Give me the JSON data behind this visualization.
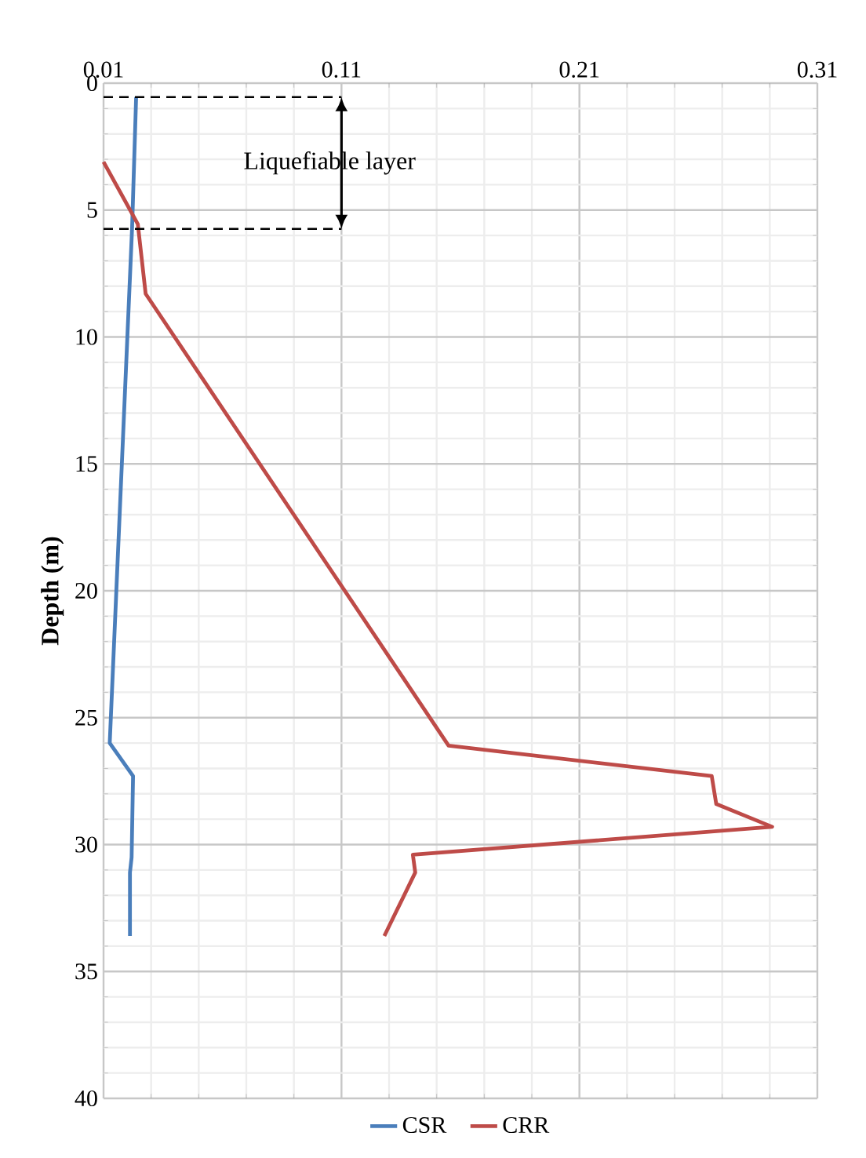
{
  "chart_data": {
    "type": "line",
    "ylabel": "Depth (m)",
    "xlim": [
      0.01,
      0.31
    ],
    "xticks": [
      0.01,
      0.11,
      0.21,
      0.31
    ],
    "ylim": [
      40,
      0
    ],
    "yticks": [
      0,
      5,
      10,
      15,
      20,
      25,
      30,
      35,
      40
    ],
    "grid": true,
    "legend": "bottom",
    "series": [
      {
        "name": "CSR",
        "color": "#4a7ebb",
        "x": [
          0.0237,
          0.022,
          0.0126,
          0.0224,
          0.0218,
          0.0211,
          0.0211
        ],
        "values": [
          0.55,
          5.7,
          26.0,
          27.3,
          30.5,
          31.1,
          33.6
        ]
      },
      {
        "name": "CRR",
        "color": "#be4b48",
        "x": [
          0.01,
          0.0244,
          0.0277,
          0.155,
          0.2656,
          0.2675,
          0.291,
          0.14,
          0.141,
          0.128
        ],
        "values": [
          3.1,
          5.55,
          8.3,
          26.1,
          27.3,
          28.4,
          29.3,
          30.4,
          31.1,
          33.6
        ]
      }
    ],
    "ref_lines": [
      {
        "axis": "y",
        "value": 0.55,
        "line_style": "dashed",
        "color": "#000000"
      },
      {
        "axis": "y",
        "value": 5.74,
        "line_style": "dashed",
        "color": "#000000"
      }
    ],
    "annotations": [
      "Liquefiable layer"
    ]
  }
}
